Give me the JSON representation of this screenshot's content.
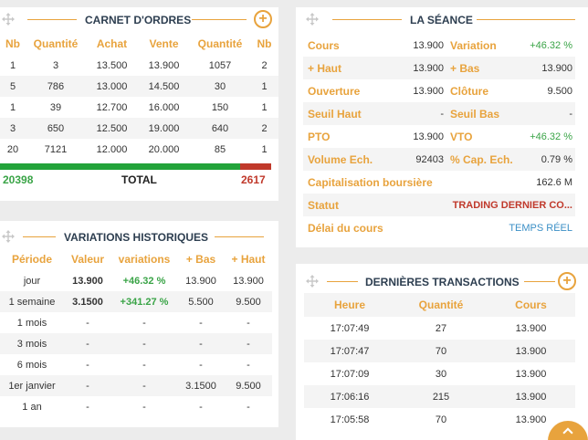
{
  "carnet": {
    "title": "CARNET D'ORDRES",
    "headers": [
      "Nb",
      "Quantité",
      "Achat",
      "Vente",
      "Quantité",
      "Nb"
    ],
    "rows": [
      [
        "1",
        "3",
        "13.500",
        "13.900",
        "1057",
        "2"
      ],
      [
        "5",
        "786",
        "13.000",
        "14.500",
        "30",
        "1"
      ],
      [
        "1",
        "39",
        "12.700",
        "16.000",
        "150",
        "1"
      ],
      [
        "3",
        "650",
        "12.500",
        "19.000",
        "640",
        "2"
      ],
      [
        "20",
        "7121",
        "12.000",
        "20.000",
        "85",
        "1"
      ]
    ],
    "total_buy": "20398",
    "total_label": "TOTAL",
    "total_sell": "2617",
    "buy_share": 0.886
  },
  "seance": {
    "title": "LA SÉANCE",
    "rows": [
      {
        "l1": "Cours",
        "v1": "13.900",
        "l2": "Variation",
        "v2": "+46.32 %"
      },
      {
        "l1": "+ Haut",
        "v1": "13.900",
        "l2": "+ Bas",
        "v2": "13.900"
      },
      {
        "l1": "Ouverture",
        "v1": "13.900",
        "l2": "Clôture",
        "v2": "9.500"
      },
      {
        "l1": "Seuil Haut",
        "v1": "-",
        "l2": "Seuil Bas",
        "v2": "-"
      },
      {
        "l1": "PTO",
        "v1": "13.900",
        "l2": "VTO",
        "v2": "+46.32 %"
      },
      {
        "l1": "Volume Ech.",
        "v1": "92403",
        "l2": "% Cap. Ech.",
        "v2": "0.79 %"
      }
    ],
    "cap_label": "Capitalisation boursière",
    "cap_value": "162.6 M",
    "statut_label": "Statut",
    "statut_value": "TRADING DERNIER CO...",
    "delai_label": "Délai du cours",
    "delai_value": "TEMPS RÉEL"
  },
  "variations": {
    "title": "VARIATIONS HISTORIQUES",
    "headers": [
      "Période",
      "Valeur",
      "variations",
      "+ Bas",
      "+ Haut"
    ],
    "rows": [
      [
        "jour",
        "13.900",
        "+46.32 %",
        "13.900",
        "13.900"
      ],
      [
        "1 semaine",
        "3.1500",
        "+341.27 %",
        "5.500",
        "9.500"
      ],
      [
        "1 mois",
        "-",
        "-",
        "-",
        "-"
      ],
      [
        "3 mois",
        "-",
        "-",
        "-",
        "-"
      ],
      [
        "6 mois",
        "-",
        "-",
        "-",
        "-"
      ],
      [
        "1er janvier",
        "-",
        "-",
        "3.1500",
        "9.500"
      ],
      [
        "1 an",
        "-",
        "-",
        "-",
        "-"
      ]
    ]
  },
  "transactions": {
    "title": "DERNIÈRES TRANSACTIONS",
    "headers": [
      "Heure",
      "Quantité",
      "Cours"
    ],
    "rows": [
      [
        "17:07:49",
        "27",
        "13.900"
      ],
      [
        "17:07:47",
        "70",
        "13.900"
      ],
      [
        "17:07:09",
        "30",
        "13.900"
      ],
      [
        "17:06:16",
        "215",
        "13.900"
      ],
      [
        "17:05:58",
        "70",
        "13.900"
      ]
    ]
  },
  "colors": {
    "accent": "#e8a33d",
    "buy": "#22a33a",
    "sell": "#c0392b",
    "title": "#2d3e50",
    "link": "#3b8fc6"
  },
  "icons": [
    "move-icon",
    "plus-icon",
    "chevron-up-icon"
  ]
}
